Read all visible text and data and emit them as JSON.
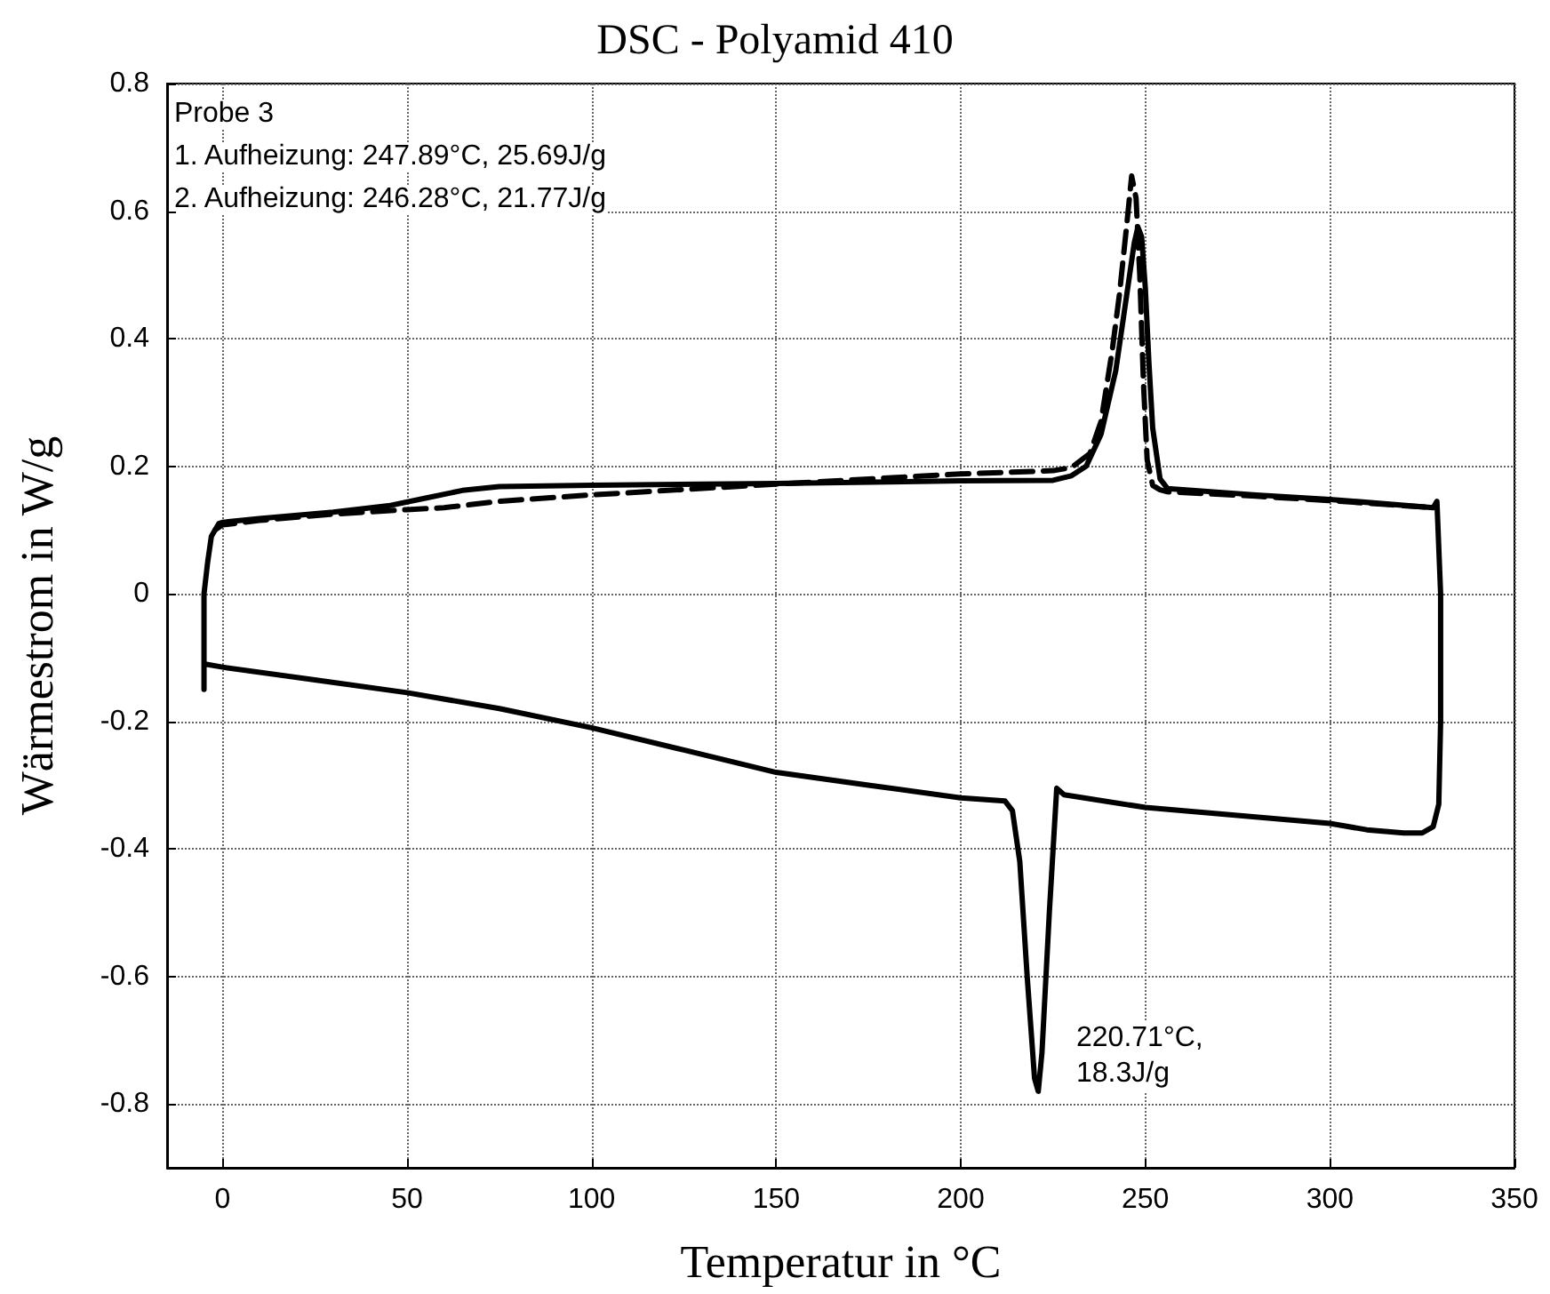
{
  "chart_data": {
    "type": "line",
    "title": "DSC - Polyamid 410",
    "xlabel": "Temperatur in °C",
    "ylabel": "Wärmestrom in W/g",
    "xlim": [
      -15,
      350
    ],
    "xticks": [
      0,
      50,
      100,
      150,
      200,
      250,
      300,
      350
    ],
    "ylim": [
      -0.9,
      0.8
    ],
    "yticks": [
      -0.8,
      -0.6,
      -0.4,
      -0.2,
      0,
      0.2,
      0.4,
      0.6,
      0.8
    ],
    "grid": true,
    "marker": "none",
    "annotations": [
      "Probe 3",
      "1. Aufheizung: 247.89°C, 25.69J/g",
      "2. Aufheizung: 246.28°C, 21.77J/g",
      {
        "text": "220.71°C,\n18.3J/g",
        "x": 220.71,
        "y": -0.78
      }
    ],
    "series": [
      {
        "color": "#000000",
        "line_style": "solid",
        "x": [
          -5,
          -5,
          -4,
          -3,
          -1,
          0,
          10,
          30,
          45,
          55,
          65,
          75,
          100,
          150,
          200,
          225,
          230,
          234,
          238,
          242,
          245,
          247,
          248,
          249,
          250,
          251,
          252,
          254,
          256,
          280,
          300,
          328,
          329,
          330,
          330,
          329.5,
          328,
          325,
          320,
          310,
          300,
          250,
          228,
          226,
          224,
          222,
          221,
          220,
          218,
          216,
          214,
          212,
          200,
          175,
          150,
          125,
          100,
          75,
          50,
          25,
          0,
          -5,
          -5
        ],
        "values": [
          -0.12,
          0,
          0.05,
          0.09,
          0.11,
          0.112,
          0.118,
          0.128,
          0.138,
          0.15,
          0.162,
          0.168,
          0.17,
          0.173,
          0.177,
          0.178,
          0.185,
          0.2,
          0.25,
          0.35,
          0.47,
          0.55,
          0.575,
          0.56,
          0.48,
          0.36,
          0.26,
          0.18,
          0.165,
          0.155,
          0.148,
          0.135,
          0.145,
          0,
          -0.2,
          -0.33,
          -0.365,
          -0.375,
          -0.375,
          -0.37,
          -0.36,
          -0.335,
          -0.315,
          -0.305,
          -0.5,
          -0.72,
          -0.78,
          -0.76,
          -0.6,
          -0.42,
          -0.34,
          -0.325,
          -0.32,
          -0.3,
          -0.28,
          -0.245,
          -0.21,
          -0.18,
          -0.155,
          -0.135,
          -0.115,
          -0.11,
          -0.15
        ]
      },
      {
        "color": "#000000",
        "line_style": "dashed",
        "x": [
          -2,
          0,
          10,
          30,
          50,
          60,
          75,
          100,
          150,
          200,
          225,
          230,
          235,
          238,
          241,
          243,
          245,
          246.3,
          247.5,
          248.5,
          249.5,
          250.5,
          252,
          254,
          256,
          280,
          300,
          328
        ],
        "values": [
          0.1,
          0.108,
          0.115,
          0.125,
          0.132,
          0.135,
          0.145,
          0.155,
          0.172,
          0.188,
          0.193,
          0.198,
          0.22,
          0.27,
          0.38,
          0.47,
          0.58,
          0.655,
          0.62,
          0.5,
          0.33,
          0.21,
          0.17,
          0.163,
          0.16,
          0.153,
          0.146,
          0.135
        ]
      }
    ]
  }
}
